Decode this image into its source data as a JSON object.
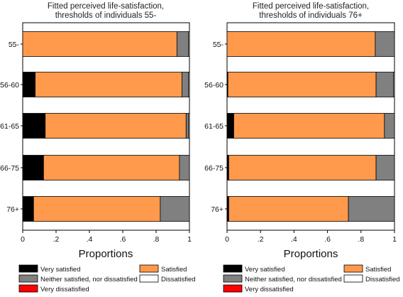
{
  "chart_data": [
    {
      "type": "bar",
      "orientation": "horizontal",
      "stacked": true,
      "title_lines": [
        "Fitted perceived life-satisfaction,",
        "thresholds of individuals 55-"
      ],
      "xlabel": "Proportions",
      "xlim": [
        0,
        1
      ],
      "xticks": [
        0,
        0.2,
        0.4,
        0.6,
        0.8,
        1
      ],
      "xtick_labels": [
        "0",
        ".2",
        ".4",
        ".6",
        ".8",
        "1"
      ],
      "categories": [
        "55-",
        "56-60",
        "61-65",
        "66-75",
        "76+"
      ],
      "series": [
        {
          "name": "Very dissatisfied",
          "color": "#ff0000",
          "values": [
            0,
            0,
            0,
            0,
            0
          ]
        },
        {
          "name": "Very satisfied",
          "color": "#000000",
          "values": [
            0,
            0.075,
            0.135,
            0.125,
            0.065
          ]
        },
        {
          "name": "Satisfied",
          "color": "#ff9a4d",
          "values": [
            0.925,
            0.88,
            0.845,
            0.815,
            0.76
          ]
        },
        {
          "name": "Neither satisfied, nor dissatisfied",
          "color": "#808080",
          "values": [
            0.07,
            0.04,
            0.015,
            0.06,
            0.175
          ]
        },
        {
          "name": "Dissatisfied",
          "color": "#ffffff",
          "values": [
            0.005,
            0.005,
            0.005,
            0,
            0
          ]
        }
      ]
    },
    {
      "type": "bar",
      "orientation": "horizontal",
      "stacked": true,
      "title_lines": [
        "Fitted perceived life-satisfaction,",
        "thresholds of individuals 76+"
      ],
      "xlabel": "Proportions",
      "xlim": [
        0,
        1
      ],
      "xticks": [
        0,
        0.2,
        0.4,
        0.6,
        0.8,
        1
      ],
      "xtick_labels": [
        "0",
        ".2",
        ".4",
        ".6",
        ".8",
        "1"
      ],
      "categories": [
        "55-",
        "56-60",
        "61-65",
        "66-75",
        "76+"
      ],
      "series": [
        {
          "name": "Very dissatisfied",
          "color": "#ff0000",
          "values": [
            0,
            0,
            0,
            0,
            0
          ]
        },
        {
          "name": "Very satisfied",
          "color": "#000000",
          "values": [
            0,
            0.005,
            0.04,
            0.01,
            0.01
          ]
        },
        {
          "name": "Satisfied",
          "color": "#ff9a4d",
          "values": [
            0.885,
            0.885,
            0.9,
            0.88,
            0.715
          ]
        },
        {
          "name": "Neither satisfied, nor dissatisfied",
          "color": "#808080",
          "values": [
            0.115,
            0.105,
            0.06,
            0.11,
            0.275
          ]
        },
        {
          "name": "Dissatisfied",
          "color": "#ffffff",
          "values": [
            0,
            0.005,
            0,
            0,
            0
          ]
        }
      ]
    }
  ],
  "legend": [
    {
      "label": "Very satisfied",
      "color": "#000000"
    },
    {
      "label": "Satisfied",
      "color": "#ff9a4d"
    },
    {
      "label": "Neither satisfied, nor dissatisfied",
      "color": "#808080"
    },
    {
      "label": "Dissatisfied",
      "color": "#ffffff"
    },
    {
      "label": "Very dissatisfied",
      "color": "#ff0000"
    }
  ]
}
